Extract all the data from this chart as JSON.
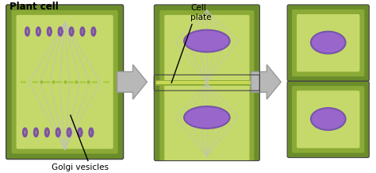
{
  "background_color": "#ffffff",
  "title": "Plant cell",
  "label_cell_plate": "Cell\nplate",
  "label_golgi": "Golgi vesicles",
  "outer_cell_color": "#6b8c2a",
  "inner_cell_color_light": "#cedd7a",
  "inner_cell_color": "#c5d96a",
  "wall_color": "#8aaa35",
  "nucleus_color": "#9966cc",
  "nucleus_edge_color": "#7755aa",
  "spindle_color": "#c0c0c0",
  "chromatin_color": "#7744aa",
  "cell_plate_color": "#c8d855",
  "arrow_color": "#b8b8b8",
  "arrow_edge_color": "#999999",
  "figsize": [
    4.74,
    2.18
  ],
  "dpi": 100
}
